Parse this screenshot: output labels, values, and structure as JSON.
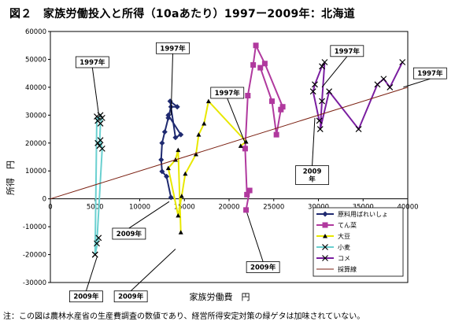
{
  "header": {
    "title": "図２　家族労働投入と所得（10aあたり）1997ー2009年：北海道"
  },
  "footnote": "注：この図は農林水産省の生産費調査の数値であり、経営所得安定対策の緑ゲタは加味されていない。",
  "chart_data": {
    "type": "line",
    "xlabel": "家族労働費　円",
    "ylabel": "所得　円",
    "xlim": [
      0,
      40000
    ],
    "ylim": [
      -30000,
      60000
    ],
    "xticks": [
      0,
      5000,
      10000,
      15000,
      20000,
      25000,
      30000,
      35000,
      40000
    ],
    "yticks": [
      -30000,
      -20000,
      -10000,
      0,
      10000,
      20000,
      30000,
      40000,
      50000,
      60000
    ],
    "series": [
      {
        "name": "原料用ばれいしょ",
        "color": "#1f2a70",
        "marker": "diamond",
        "x": [
          13500,
          13000,
          12500,
          12400,
          12500,
          12800,
          13200,
          13500,
          14200,
          13400,
          14000,
          14600,
          13200
        ],
        "y": [
          500,
          8000,
          9800,
          14000,
          20000,
          24000,
          29000,
          33000,
          33000,
          35000,
          22000,
          23000,
          30000
        ]
      },
      {
        "name": "てん菜",
        "color": "#b0399e",
        "marker": "square",
        "x": [
          21900,
          22300,
          22000,
          21800,
          22100,
          22700,
          23000,
          24000,
          26000,
          25800,
          25300,
          24800,
          23500
        ],
        "y": [
          -4000,
          3000,
          1500,
          18000,
          37000,
          48000,
          55000,
          48500,
          33000,
          32000,
          23000,
          35000,
          47000
        ]
      },
      {
        "name": "大豆",
        "color": "#e8e800",
        "marker": "triangle",
        "x": [
          21300,
          21900,
          17700,
          17200,
          16600,
          16300,
          15100,
          14700,
          14300,
          13200,
          14000,
          14300,
          14600
        ],
        "y": [
          19000,
          20500,
          35000,
          27000,
          23000,
          16000,
          9000,
          1000,
          -6000,
          11000,
          14000,
          17500,
          -12000
        ]
      },
      {
        "name": "小麦",
        "color": "#6ad0d0",
        "marker": "x",
        "x": [
          5000,
          5400,
          5200,
          5800,
          5600,
          5300,
          5500,
          5600,
          5800,
          5600,
          5300,
          5200,
          5000
        ],
        "y": [
          -20000,
          -14000,
          -16000,
          18000,
          21000,
          20000,
          19000,
          27000,
          29000,
          30000,
          28000,
          29500,
          -20000
        ]
      },
      {
        "name": "コメ",
        "color": "#7a1ea0",
        "marker": "x",
        "x": [
          30100,
          29400,
          29600,
          30400,
          30700,
          30400,
          30200,
          31200,
          34500,
          36600,
          37300,
          38000,
          39400
        ],
        "y": [
          28000,
          38500,
          41000,
          47500,
          49000,
          35000,
          25000,
          38500,
          25000,
          41000,
          43000,
          40000,
          49000
        ]
      },
      {
        "name": "採算線",
        "color": "#7a1f10",
        "marker": "none",
        "x": [
          0,
          40000
        ],
        "y": [
          0,
          40000
        ]
      }
    ],
    "callouts": [
      {
        "text": "1997年",
        "target": [
          5400,
          30500
        ],
        "box": [
          4700,
          49000
        ]
      },
      {
        "text": "1997年",
        "target": [
          13500,
          30000
        ],
        "box": [
          13700,
          54000
        ]
      },
      {
        "text": "1997年",
        "target": [
          21800,
          20000
        ],
        "box": [
          19800,
          38000
        ]
      },
      {
        "text": "1997年",
        "target": [
          30400,
          40000
        ],
        "box": [
          33200,
          53000
        ]
      },
      {
        "text": "1997年",
        "target": [
          39500,
          40000
        ],
        "box": [
          42500,
          45000
        ]
      },
      {
        "text": "2009年",
        "target": [
          13300,
          -1000
        ],
        "box": [
          8800,
          -12500
        ]
      },
      {
        "text": "2009年",
        "target": [
          14000,
          -18000
        ],
        "box": [
          9000,
          -35000
        ]
      },
      {
        "text": "2009年",
        "target": [
          5200,
          -21000
        ],
        "box": [
          4000,
          -35000
        ]
      },
      {
        "text": "2009年",
        "target": [
          22000,
          -5000
        ],
        "box": [
          23800,
          -24500
        ]
      },
      {
        "text": "2009\n年",
        "target": [
          29600,
          29000
        ],
        "box": [
          29300,
          8500
        ]
      }
    ]
  }
}
